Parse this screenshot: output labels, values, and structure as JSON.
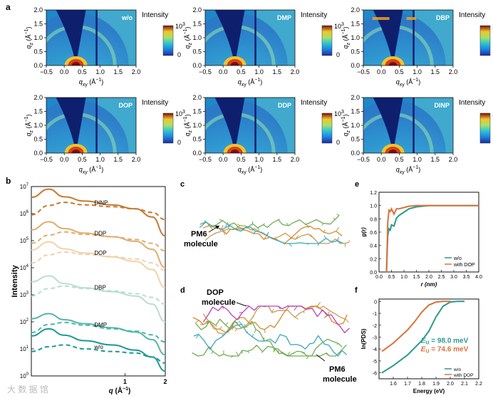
{
  "panel_labels": {
    "a": "a",
    "b": "b",
    "c": "c",
    "d": "d",
    "e": "e",
    "f": "f"
  },
  "giwaxs": {
    "panels": [
      {
        "name": "w/o"
      },
      {
        "name": "DMP"
      },
      {
        "name": "DBP"
      },
      {
        "name": "DOP"
      },
      {
        "name": "DDP"
      },
      {
        "name": "DINP"
      }
    ],
    "colorbar_title": "Intensity",
    "colorbar_max": "10",
    "colorbar_max_exp": "3",
    "colorbar_min": "0",
    "y_ticks": [
      "2.0",
      "1.5",
      "1.0",
      "0.5",
      "0.0"
    ],
    "x_ticks": [
      "−0.5",
      "0.0",
      "0.5",
      "1.0",
      "1.5",
      "2.0"
    ],
    "y_label": "q",
    "y_label_sub": "z",
    "x_label": "q",
    "x_label_sub": "xy",
    "unit": " (Å",
    "unit_sup": "−1",
    "unit_end": ")"
  },
  "chart_data": [
    {
      "type": "line",
      "panel": "b",
      "xlabel": "q (Å⁻¹)",
      "ylabel": "Intensity",
      "x_scale": "log",
      "y_scale": "log",
      "xlim": [
        0.2,
        2
      ],
      "ylim": [
        1,
        10000000
      ],
      "y_ticks": [
        "10",
        "10",
        "10",
        "10",
        "10",
        "10",
        "10",
        "10"
      ],
      "y_tick_exps": [
        "0",
        "1",
        "2",
        "3",
        "4",
        "5",
        "6",
        "7"
      ],
      "x_ticks": [
        "1",
        "2"
      ],
      "x_label_main": "q",
      "x_label_unit": " (Å",
      "x_label_sup": "−1",
      "x_label_end": ")",
      "series": [
        {
          "name": "w/o",
          "color": "#1c9a93",
          "x": [
            0.2,
            0.27,
            0.35,
            0.5,
            0.8,
            1.2,
            1.6,
            2.0
          ],
          "solid": [
            30,
            55,
            32,
            20,
            14,
            9,
            5,
            1.5
          ],
          "dashed": [
            8,
            12,
            14,
            10,
            8,
            7,
            5,
            3
          ]
        },
        {
          "name": "DMP",
          "color": "#4fb6aa",
          "x": [
            0.2,
            0.27,
            0.35,
            0.5,
            0.8,
            1.2,
            1.6,
            2.0
          ],
          "solid": [
            130,
            200,
            120,
            85,
            60,
            42,
            22,
            6
          ],
          "dashed": [
            40,
            80,
            95,
            75,
            55,
            45,
            33,
            18
          ]
        },
        {
          "name": "DBP",
          "color": "#b9ddd3",
          "x": [
            0.2,
            0.27,
            0.35,
            0.5,
            0.8,
            1.2,
            1.6,
            2.0
          ],
          "solid": [
            3000,
            5000,
            2600,
            1800,
            1300,
            900,
            450,
            100
          ],
          "dashed": [
            900,
            1700,
            2100,
            1700,
            1400,
            1100,
            800,
            450
          ]
        },
        {
          "name": "DOP",
          "color": "#f1d2ac",
          "x": [
            0.2,
            0.27,
            0.35,
            0.5,
            0.8,
            1.2,
            1.6,
            2.0
          ],
          "solid": [
            45000,
            90000,
            50000,
            35000,
            25000,
            17000,
            8500,
            1800
          ],
          "dashed": [
            15000,
            30000,
            38000,
            31000,
            26000,
            21000,
            15000,
            8000
          ]
        },
        {
          "name": "DDP",
          "color": "#e2ad6e",
          "x": [
            0.2,
            0.27,
            0.35,
            0.5,
            0.8,
            1.2,
            1.6,
            2.0
          ],
          "solid": [
            250000,
            500000,
            280000,
            190000,
            140000,
            95000,
            48000,
            10000
          ],
          "dashed": [
            80000,
            160000,
            210000,
            170000,
            140000,
            110000,
            80000,
            42000
          ]
        },
        {
          "name": "DINP",
          "color": "#c47a2f",
          "x": [
            0.2,
            0.27,
            0.35,
            0.5,
            0.8,
            1.2,
            1.6,
            2.0
          ],
          "solid": [
            4000000,
            8000000,
            4200000,
            2900000,
            2100000,
            1500000,
            750000,
            150000
          ],
          "dashed": [
            900000,
            2000000,
            2600000,
            2100000,
            1800000,
            1500000,
            1100000,
            600000
          ]
        }
      ]
    },
    {
      "type": "line",
      "panel": "e",
      "xlabel": "r (nm)",
      "ylabel": "g(r)",
      "xlim": [
        0,
        4
      ],
      "ylim": [
        0,
        1.2
      ],
      "x_ticks": [
        "0.0",
        "0.5",
        "1.0",
        "1.5",
        "2.0",
        "2.5",
        "3.0",
        "3.5",
        "4.0"
      ],
      "y_ticks": [
        "0.0",
        "0.2",
        "0.4",
        "0.6",
        "0.8",
        "1.0",
        "1.2"
      ],
      "series": [
        {
          "name": "w/o",
          "color": "#2a9a8a",
          "x": [
            0.3,
            0.35,
            0.4,
            0.45,
            0.5,
            0.6,
            0.7,
            0.8,
            1.0,
            1.2,
            1.5,
            2.0,
            2.5,
            3.0,
            4.0
          ],
          "y": [
            0,
            0.55,
            0.62,
            0.66,
            0.68,
            0.72,
            0.78,
            0.85,
            0.9,
            0.95,
            0.98,
            1.0,
            1.0,
            1.0,
            1.0
          ]
        },
        {
          "name": "with DOP",
          "color": "#d9733a",
          "x": [
            0.3,
            0.35,
            0.4,
            0.45,
            0.5,
            0.6,
            0.7,
            0.8,
            1.0,
            1.2,
            1.5,
            2.0,
            2.5,
            3.0,
            4.0
          ],
          "y": [
            0,
            0.75,
            0.9,
            0.94,
            0.92,
            0.9,
            0.92,
            0.95,
            0.97,
            0.99,
            1.0,
            1.0,
            1.0,
            1.0,
            1.0
          ]
        }
      ]
    },
    {
      "type": "line",
      "panel": "f",
      "xlabel": "Energy (eV)",
      "ylabel": "ln(PDS)",
      "xlim": [
        1.5,
        2.2
      ],
      "ylim": [
        -6.5,
        0.2
      ],
      "x_ticks": [
        "1.6",
        "1.7",
        "1.8",
        "1.9",
        "2.0",
        "2.1",
        "2.2"
      ],
      "y_ticks": [
        "0",
        "-1",
        "-2",
        "-3",
        "-4",
        "-5",
        "-6"
      ],
      "series": [
        {
          "name": "w/o",
          "color": "#2a9a8a",
          "x": [
            1.52,
            1.6,
            1.7,
            1.8,
            1.85,
            1.9,
            1.95,
            2.0,
            2.05,
            2.1
          ],
          "y": [
            -6.0,
            -5.4,
            -4.5,
            -3.3,
            -2.5,
            -1.3,
            -0.4,
            -0.05,
            0,
            0
          ]
        },
        {
          "name": "with DOP",
          "color": "#d9733a",
          "x": [
            1.52,
            1.6,
            1.7,
            1.75,
            1.8,
            1.85,
            1.9,
            1.95,
            2.0
          ],
          "y": [
            -4.2,
            -3.5,
            -2.4,
            -1.7,
            -0.9,
            -0.3,
            -0.05,
            0,
            0
          ]
        }
      ],
      "annotations": [
        {
          "text_main": "E",
          "text_sub": "U",
          "text_val": " = 98.0 meV",
          "color": "#2a9a8a"
        },
        {
          "text_main": "E",
          "text_sub": "U",
          "text_val": " = 74.6 meV",
          "color": "#d9733a"
        }
      ]
    }
  ],
  "panel_c": {
    "pm6_label_1": "PM6",
    "pm6_label_2": "molecule"
  },
  "panel_d": {
    "dop_label_1": "DOP",
    "dop_label_2": "molecule",
    "pm6_label_1": "PM6",
    "pm6_label_2": "molecule"
  },
  "watermark": "大 数 据 馆"
}
